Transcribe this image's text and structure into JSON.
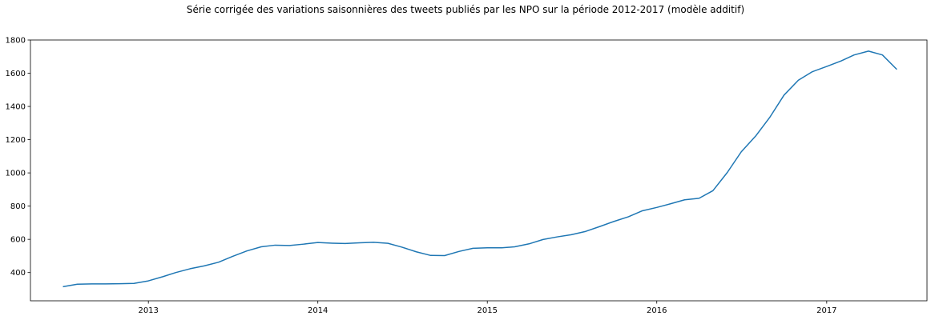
{
  "chart_data": {
    "type": "line",
    "title": "Série corrigée des variations saisonnières des tweets publiés par les NPO sur la période 2012-2017 (modèle additif)",
    "xlabel": "",
    "ylabel": "",
    "x_ticks": [
      "2013",
      "2014",
      "2015",
      "2016",
      "2017"
    ],
    "y_ticks": [
      400,
      600,
      800,
      1000,
      1200,
      1400,
      1600,
      1800
    ],
    "ylim": [
      230,
      1800
    ],
    "xlim": [
      "2012-04-22",
      "2017-08-05"
    ],
    "grid": false,
    "line_color": "#1f77b4",
    "series": [
      {
        "x": [
          "2012-07",
          "2012-08",
          "2012-09",
          "2012-10",
          "2012-11",
          "2012-12",
          "2013-01",
          "2013-02",
          "2013-03",
          "2013-04",
          "2013-05",
          "2013-06",
          "2013-07",
          "2013-08",
          "2013-09",
          "2013-10",
          "2013-11",
          "2013-12",
          "2014-01",
          "2014-02",
          "2014-03",
          "2014-04",
          "2014-05",
          "2014-06",
          "2014-07",
          "2014-08",
          "2014-09",
          "2014-10",
          "2014-11",
          "2014-12",
          "2015-01",
          "2015-02",
          "2015-03",
          "2015-04",
          "2015-05",
          "2015-06",
          "2015-07",
          "2015-08",
          "2015-09",
          "2015-10",
          "2015-11",
          "2015-12",
          "2016-01",
          "2016-02",
          "2016-03",
          "2016-04",
          "2016-05",
          "2016-06",
          "2016-07",
          "2016-08",
          "2016-09",
          "2016-10",
          "2016-11",
          "2016-12",
          "2017-01",
          "2017-02",
          "2017-03",
          "2017-04",
          "2017-05",
          "2017-06"
        ],
        "values": [
          315,
          330,
          332,
          332,
          333,
          335,
          350,
          375,
          400,
          423,
          440,
          462,
          497,
          530,
          555,
          565,
          563,
          571,
          581,
          577,
          575,
          579,
          582,
          576,
          553,
          525,
          503,
          502,
          527,
          546,
          549,
          549,
          555,
          573,
          599,
          615,
          628,
          648,
          678,
          708,
          736,
          772,
          792,
          815,
          838,
          847,
          893,
          1003,
          1127,
          1222,
          1337,
          1468,
          1558,
          1609,
          1641,
          1674,
          1710,
          1733,
          1710,
          1623
        ]
      }
    ]
  }
}
